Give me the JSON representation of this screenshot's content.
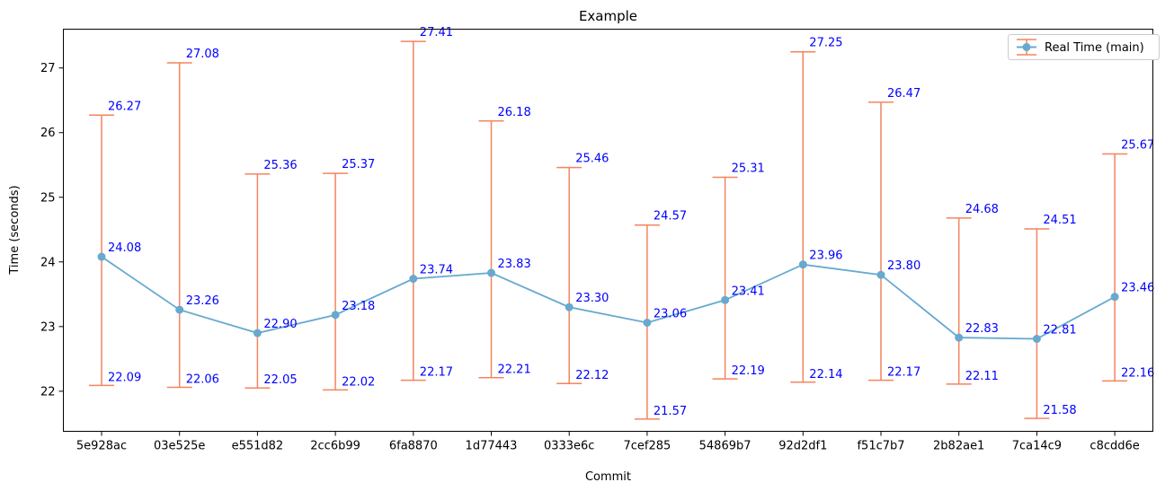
{
  "chart_data": {
    "type": "line",
    "title": "Example",
    "xlabel": "Commit",
    "ylabel": "Time (seconds)",
    "categories": [
      "5e928ac",
      "03e525e",
      "e551d82",
      "2cc6b99",
      "6fa8870",
      "1d77443",
      "0333e6c",
      "7cef285",
      "54869b7",
      "92d2df1",
      "f51c7b7",
      "2b82ae1",
      "7ca14c9",
      "c8cdd6e"
    ],
    "series": [
      {
        "name": "Real Time (main)",
        "values": [
          24.08,
          23.26,
          22.9,
          23.18,
          23.74,
          23.83,
          23.3,
          23.06,
          23.41,
          23.96,
          23.8,
          22.83,
          22.81,
          23.46
        ],
        "min": [
          22.09,
          22.06,
          22.05,
          22.02,
          22.17,
          22.21,
          22.12,
          21.57,
          22.19,
          22.14,
          22.17,
          22.11,
          21.58,
          22.16
        ],
        "max": [
          26.27,
          27.08,
          25.36,
          25.37,
          27.41,
          26.18,
          25.46,
          24.57,
          25.31,
          27.25,
          26.47,
          24.68,
          24.51,
          25.67
        ],
        "labels": {
          "values": [
            "24.08",
            "23.26",
            "22.90",
            "23.18",
            "23.74",
            "23.83",
            "23.30",
            "23.06",
            "23.41",
            "23.96",
            "23.80",
            "22.83",
            "22.81",
            "23.46"
          ],
          "min": [
            "22.09",
            "22.06",
            "22.05",
            "22.02",
            "22.17",
            "22.21",
            "22.12",
            "21.57",
            "22.19",
            "22.14",
            "22.17",
            "22.11",
            "21.58",
            "22.16"
          ],
          "max": [
            "26.27",
            "27.08",
            "25.36",
            "25.37",
            "27.41",
            "26.18",
            "25.46",
            "24.57",
            "25.31",
            "27.25",
            "26.47",
            "24.68",
            "24.51",
            "25.67"
          ]
        }
      }
    ],
    "yticks": [
      22,
      23,
      24,
      25,
      26,
      27
    ],
    "ylim": [
      21.38,
      27.6
    ],
    "grid": false,
    "legend_position": "top-right",
    "colors": {
      "line": "#67a9cf",
      "errorbar": "#f4845f",
      "label": "#0000ff"
    }
  }
}
